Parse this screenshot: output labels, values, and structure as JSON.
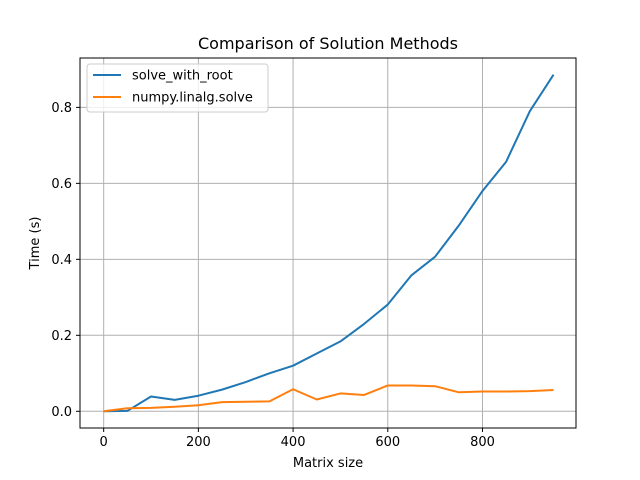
{
  "chart_data": {
    "type": "line",
    "title": "Comparison of Solution Methods",
    "xlabel": "Matrix size",
    "ylabel": "Time (s)",
    "xlim": [
      -50,
      997.5
    ],
    "ylim": [
      -0.044,
      0.93
    ],
    "xticks": [
      0,
      200,
      400,
      600,
      800
    ],
    "yticks": [
      0.0,
      0.2,
      0.4,
      0.6,
      0.8
    ],
    "xtick_labels": [
      "0",
      "200",
      "400",
      "600",
      "800"
    ],
    "ytick_labels": [
      "0.0",
      "0.2",
      "0.4",
      "0.6",
      "0.8"
    ],
    "grid": true,
    "legend_position": "top-left",
    "x": [
      0,
      50,
      100,
      150,
      200,
      250,
      300,
      350,
      400,
      450,
      500,
      550,
      600,
      650,
      700,
      750,
      800,
      850,
      900,
      950
    ],
    "series": [
      {
        "name": "solve_with_root",
        "color": "#1f77b4",
        "values": [
          0.0,
          0.001,
          0.039,
          0.03,
          0.041,
          0.057,
          0.077,
          0.1,
          0.12,
          0.152,
          0.184,
          0.23,
          0.281,
          0.358,
          0.407,
          0.489,
          0.58,
          0.657,
          0.79,
          0.886
        ]
      },
      {
        "name": "numpy.linalg.solve",
        "color": "#ff7f0e",
        "values": [
          0.0,
          0.008,
          0.009,
          0.012,
          0.016,
          0.024,
          0.025,
          0.026,
          0.058,
          0.031,
          0.047,
          0.043,
          0.068,
          0.068,
          0.066,
          0.05,
          0.052,
          0.052,
          0.053,
          0.056
        ]
      }
    ]
  }
}
